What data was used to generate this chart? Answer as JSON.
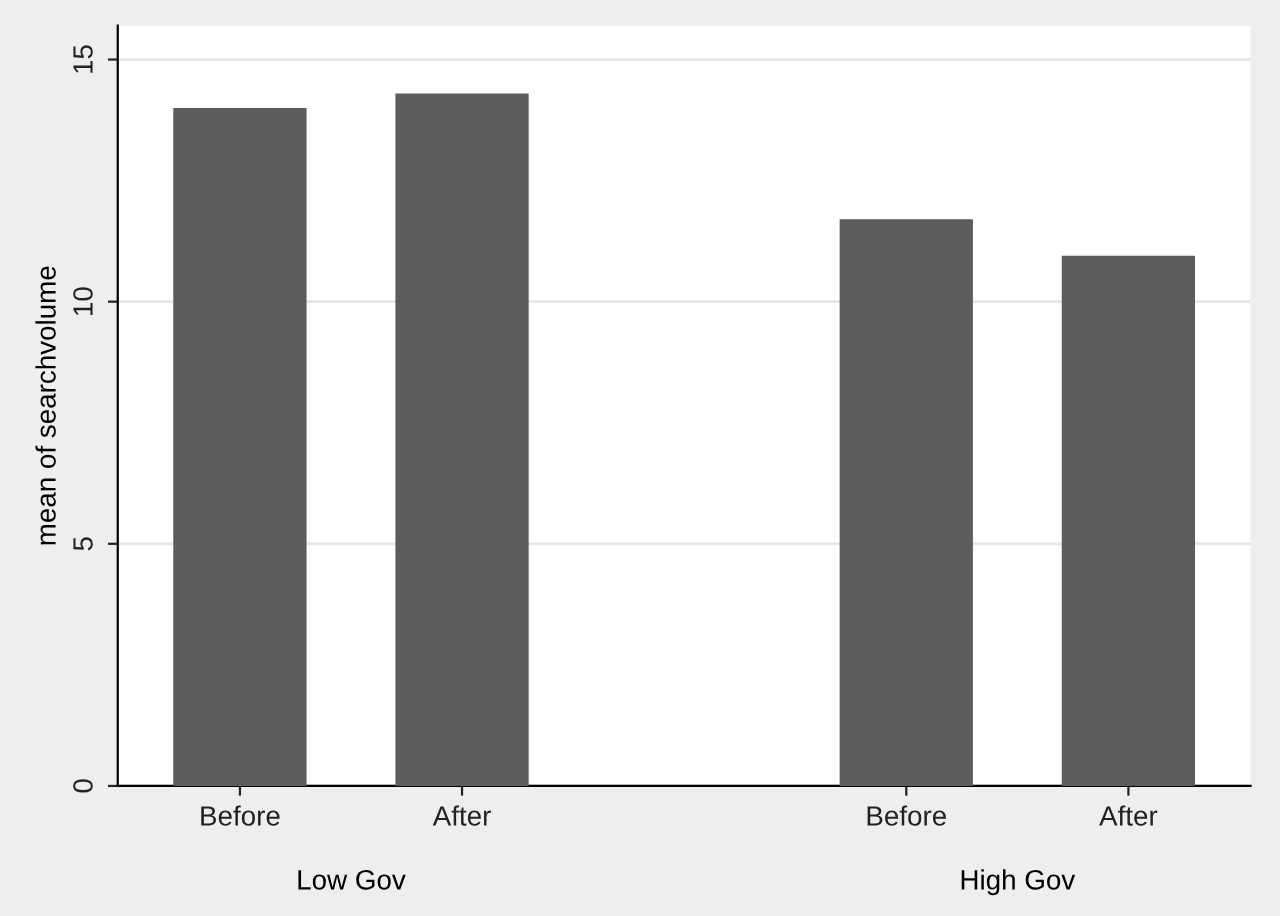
{
  "chart_data": {
    "type": "bar",
    "categories": [
      "Before",
      "After",
      null,
      "Before",
      "After"
    ],
    "values": [
      14.0,
      14.3,
      null,
      11.7,
      10.95
    ],
    "color": "#5c5c5c",
    "ylabel": "mean of searchvolume",
    "ylim": [
      0,
      15.7
    ],
    "yticks": [
      0,
      5,
      10,
      15
    ],
    "grid": "y",
    "annotations": [
      "Low Gov",
      "High Gov"
    ]
  }
}
